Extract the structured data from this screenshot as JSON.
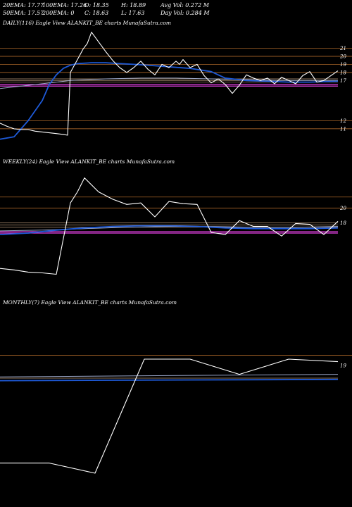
{
  "header": {
    "row1": [
      "20EMA: 17.77",
      "100EMA: 17.26",
      "O: 18.35",
      "H: 18.89",
      "Avg Vol: 0.272  M"
    ],
    "row2": [
      "50EMA: 17.57",
      "200EMA: 0",
      "C: 18.63",
      "L: 17.63",
      "Day Vol: 0.284  M"
    ]
  },
  "colors": {
    "price": "#ffffff",
    "ema_blue": "#1e5ad8",
    "ema_light": "#9aa6c8",
    "magenta": "#e040e0",
    "support_orange": "#c87830",
    "tan": "#b89878"
  },
  "chart_data": [
    {
      "type": "line",
      "title": "DAILY(116) Eagle  View  ALANKIT_BE charts MunafaSutra.com",
      "ylim": [
        9.5,
        23.5
      ],
      "yticks": [
        "21",
        "20",
        "19",
        "18",
        "17",
        "12",
        "11"
      ],
      "ytick_values": [
        21,
        20,
        19,
        18,
        17,
        12,
        11
      ],
      "hlines_orange": [
        21,
        20,
        19,
        18,
        12,
        11
      ],
      "hlines_tan": [
        17.2,
        17.0,
        16.8
      ],
      "hlines_magenta": [
        16.5,
        16.3
      ],
      "series": [
        {
          "role": "price",
          "x": [
            0,
            10,
            20,
            30,
            40,
            50,
            60,
            70,
            80,
            90,
            96,
            100,
            110,
            118,
            124,
            130,
            140,
            150,
            160,
            170,
            180,
            190,
            200,
            205,
            210,
            220,
            230,
            240,
            250,
            255,
            260,
            270,
            280,
            290,
            300,
            310,
            320,
            330,
            340,
            350,
            360,
            370,
            380,
            390,
            400,
            410,
            420,
            430,
            440,
            450,
            460,
            470,
            480
          ],
          "values": [
            11.7,
            11.3,
            11.0,
            10.9,
            10.9,
            10.7,
            10.6,
            10.5,
            10.4,
            10.3,
            10.2,
            18.0,
            19.6,
            20.9,
            21.6,
            23.0,
            21.8,
            20.6,
            19.5,
            18.6,
            18.0,
            18.6,
            19.4,
            18.9,
            18.4,
            17.7,
            19.0,
            18.6,
            19.4,
            19.0,
            19.6,
            18.6,
            19.0,
            17.6,
            16.7,
            17.2,
            16.5,
            15.4,
            16.4,
            17.7,
            17.3,
            17.0,
            17.3,
            16.6,
            17.4,
            17.0,
            16.6,
            17.6,
            18.1,
            16.8,
            17.0,
            17.6,
            18.2
          ]
        },
        {
          "role": "ema",
          "x": [
            0,
            20,
            40,
            60,
            70,
            80,
            90,
            100,
            110,
            130,
            150,
            170,
            190,
            210,
            240,
            270,
            300,
            320,
            350,
            380,
            410,
            440,
            480
          ],
          "values": [
            9.7,
            10.0,
            12.0,
            14.5,
            16.5,
            17.7,
            18.5,
            18.9,
            19.1,
            19.2,
            19.2,
            19.1,
            19.0,
            18.9,
            18.7,
            18.5,
            18.1,
            17.3,
            17.0,
            16.9,
            16.8,
            16.8,
            16.9
          ]
        },
        {
          "role": "ema_light",
          "x": [
            0,
            20,
            40,
            60,
            80,
            100,
            150,
            200,
            250,
            300,
            350,
            400,
            480
          ],
          "values": [
            16.0,
            16.2,
            16.4,
            16.6,
            16.8,
            17.0,
            17.2,
            17.3,
            17.3,
            17.2,
            17.1,
            17.0,
            17.0
          ]
        }
      ]
    },
    {
      "type": "line",
      "title": "WEEKLY(24) Eagle  View  ALANKIT_BE charts MunafaSutra.com",
      "ylim": [
        10.0,
        25.5
      ],
      "yticks": [
        "20",
        "18"
      ],
      "ytick_values": [
        20,
        18
      ],
      "hlines_orange": [
        21.5,
        20.0
      ],
      "hlines_tan": [
        18.0,
        17.7,
        17.4
      ],
      "hlines_magenta": [
        16.8,
        16.6
      ],
      "series": [
        {
          "role": "price",
          "x": [
            0,
            20,
            40,
            60,
            80,
            100,
            110,
            120,
            140,
            160,
            180,
            200,
            220,
            240,
            260,
            280,
            300,
            320,
            340,
            360,
            380,
            400,
            420,
            440,
            460,
            480
          ],
          "values": [
            11.8,
            11.6,
            11.3,
            11.2,
            11.0,
            20.7,
            22.2,
            24.1,
            22.2,
            21.2,
            20.5,
            20.7,
            18.8,
            20.9,
            20.6,
            20.5,
            16.7,
            16.4,
            18.3,
            17.5,
            17.5,
            16.2,
            17.9,
            17.8,
            16.4,
            18.2
          ]
        },
        {
          "role": "ema",
          "x": [
            0,
            40,
            80,
            120,
            160,
            200,
            240,
            280,
            320,
            360,
            400,
            440,
            480
          ],
          "values": [
            16.4,
            16.6,
            17.0,
            17.3,
            17.5,
            17.6,
            17.6,
            17.5,
            17.3,
            17.2,
            17.2,
            17.2,
            17.3
          ]
        },
        {
          "role": "ema_light",
          "x": [
            0,
            60,
            120,
            180,
            240,
            300,
            360,
            420,
            480
          ],
          "values": [
            16.9,
            17.0,
            17.2,
            17.4,
            17.5,
            17.5,
            17.4,
            17.4,
            17.5
          ]
        }
      ]
    },
    {
      "type": "line",
      "title": "MONTHLY(7) Eagle  View  ALANKIT_BE charts MunafaSutra.com",
      "ylim": [
        9.5,
        23.5
      ],
      "yticks": [
        "19"
      ],
      "ytick_values": [
        19
      ],
      "hlines_orange": [
        19.8
      ],
      "hlines_tan": [
        18.0
      ],
      "hlines_magenta": [],
      "series": [
        {
          "role": "price",
          "x": [
            0,
            70,
            135,
            205,
            270,
            340,
            410,
            480
          ],
          "values": [
            11.3,
            11.3,
            10.5,
            19.5,
            19.5,
            18.3,
            19.5,
            19.3
          ]
        },
        {
          "role": "ema",
          "x": [
            0,
            480
          ],
          "values": [
            17.8,
            17.9
          ]
        },
        {
          "role": "ema_light",
          "x": [
            0,
            480
          ],
          "values": [
            18.1,
            18.3
          ]
        }
      ]
    }
  ]
}
